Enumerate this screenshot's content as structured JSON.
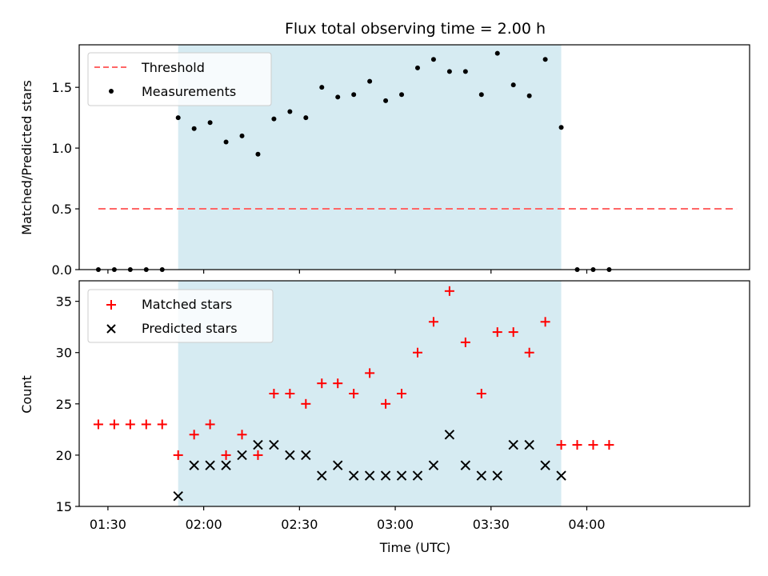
{
  "chart_data": [
    {
      "type": "scatter",
      "title": "Flux total observing time = 2.00 h",
      "ylabel": "Matched/Predicted stars",
      "xlabel": "",
      "ylim": [
        0.0,
        1.85
      ],
      "xlim": [
        "01:21",
        "04:51"
      ],
      "yticks": [
        0.0,
        0.5,
        1.0,
        1.5
      ],
      "ytick_labels": [
        "0.0",
        "0.5",
        "1.0",
        "1.5"
      ],
      "shaded_span": [
        "01:52",
        "03:52"
      ],
      "shade_color": "#add8e6",
      "legend": {
        "placement": "upper-left",
        "entries": [
          "Threshold",
          "Measurements"
        ]
      },
      "series": [
        {
          "name": "Threshold",
          "style": "dashed-line",
          "color": "#ff6666",
          "x": [
            "01:27",
            "04:47"
          ],
          "y": [
            0.5,
            0.5
          ]
        },
        {
          "name": "Measurements",
          "style": "dot",
          "color": "#000000",
          "x": [
            "01:27",
            "01:32",
            "01:37",
            "01:42",
            "01:47",
            "01:52",
            "01:57",
            "02:02",
            "02:07",
            "02:12",
            "02:17",
            "02:22",
            "02:27",
            "02:32",
            "02:37",
            "02:42",
            "02:47",
            "02:52",
            "02:57",
            "03:02",
            "03:07",
            "03:12",
            "03:17",
            "03:22",
            "03:27",
            "03:32",
            "03:37",
            "03:42",
            "03:47",
            "03:52",
            "03:57",
            "04:02",
            "04:07"
          ],
          "y": [
            0.0,
            0.0,
            0.0,
            0.0,
            0.0,
            1.25,
            1.16,
            1.21,
            1.05,
            1.1,
            0.95,
            1.24,
            1.3,
            1.25,
            1.5,
            1.42,
            1.44,
            1.55,
            1.39,
            1.44,
            1.66,
            1.73,
            1.63,
            1.63,
            1.44,
            1.78,
            1.52,
            1.43,
            1.73,
            1.17,
            0.0,
            0.0,
            0.0
          ]
        }
      ]
    },
    {
      "type": "scatter",
      "title": "",
      "ylabel": "Count",
      "xlabel": "Time (UTC)",
      "ylim": [
        15,
        37
      ],
      "xlim": [
        "01:21",
        "04:51"
      ],
      "yticks": [
        15,
        20,
        25,
        30,
        35
      ],
      "ytick_labels": [
        "15",
        "20",
        "25",
        "30",
        "35"
      ],
      "xticks": [
        "01:30",
        "02:00",
        "02:30",
        "03:00",
        "03:30",
        "04:00"
      ],
      "xtick_labels": [
        "01:30",
        "02:00",
        "02:30",
        "03:00",
        "03:30",
        "04:00"
      ],
      "shaded_span": [
        "01:52",
        "03:52"
      ],
      "shade_color": "#add8e6",
      "legend": {
        "placement": "upper-left",
        "entries": [
          "Matched stars",
          "Predicted stars"
        ]
      },
      "series": [
        {
          "name": "Matched stars",
          "marker": "plus",
          "color": "#ff0000",
          "x": [
            "01:27",
            "01:32",
            "01:37",
            "01:42",
            "01:47",
            "01:52",
            "01:57",
            "02:02",
            "02:07",
            "02:12",
            "02:17",
            "02:22",
            "02:27",
            "02:32",
            "02:37",
            "02:42",
            "02:47",
            "02:52",
            "02:57",
            "03:02",
            "03:07",
            "03:12",
            "03:17",
            "03:22",
            "03:27",
            "03:32",
            "03:37",
            "03:42",
            "03:47",
            "03:52",
            "03:57",
            "04:02",
            "04:07"
          ],
          "y": [
            23,
            23,
            23,
            23,
            23,
            20,
            22,
            23,
            20,
            22,
            20,
            26,
            26,
            25,
            27,
            27,
            26,
            28,
            25,
            26,
            30,
            33,
            36,
            31,
            26,
            32,
            32,
            30,
            33,
            21,
            21,
            21,
            21
          ]
        },
        {
          "name": "Predicted stars",
          "marker": "x",
          "color": "#000000",
          "x": [
            "01:52",
            "01:57",
            "02:02",
            "02:07",
            "02:12",
            "02:17",
            "02:22",
            "02:27",
            "02:32",
            "02:37",
            "02:42",
            "02:47",
            "02:52",
            "02:57",
            "03:02",
            "03:07",
            "03:12",
            "03:17",
            "03:22",
            "03:27",
            "03:32",
            "03:37",
            "03:42",
            "03:47",
            "03:52"
          ],
          "y": [
            16,
            19,
            19,
            19,
            20,
            21,
            21,
            20,
            20,
            18,
            19,
            18,
            18,
            18,
            18,
            18,
            19,
            22,
            19,
            18,
            18,
            21,
            21,
            19,
            18
          ]
        }
      ]
    }
  ]
}
